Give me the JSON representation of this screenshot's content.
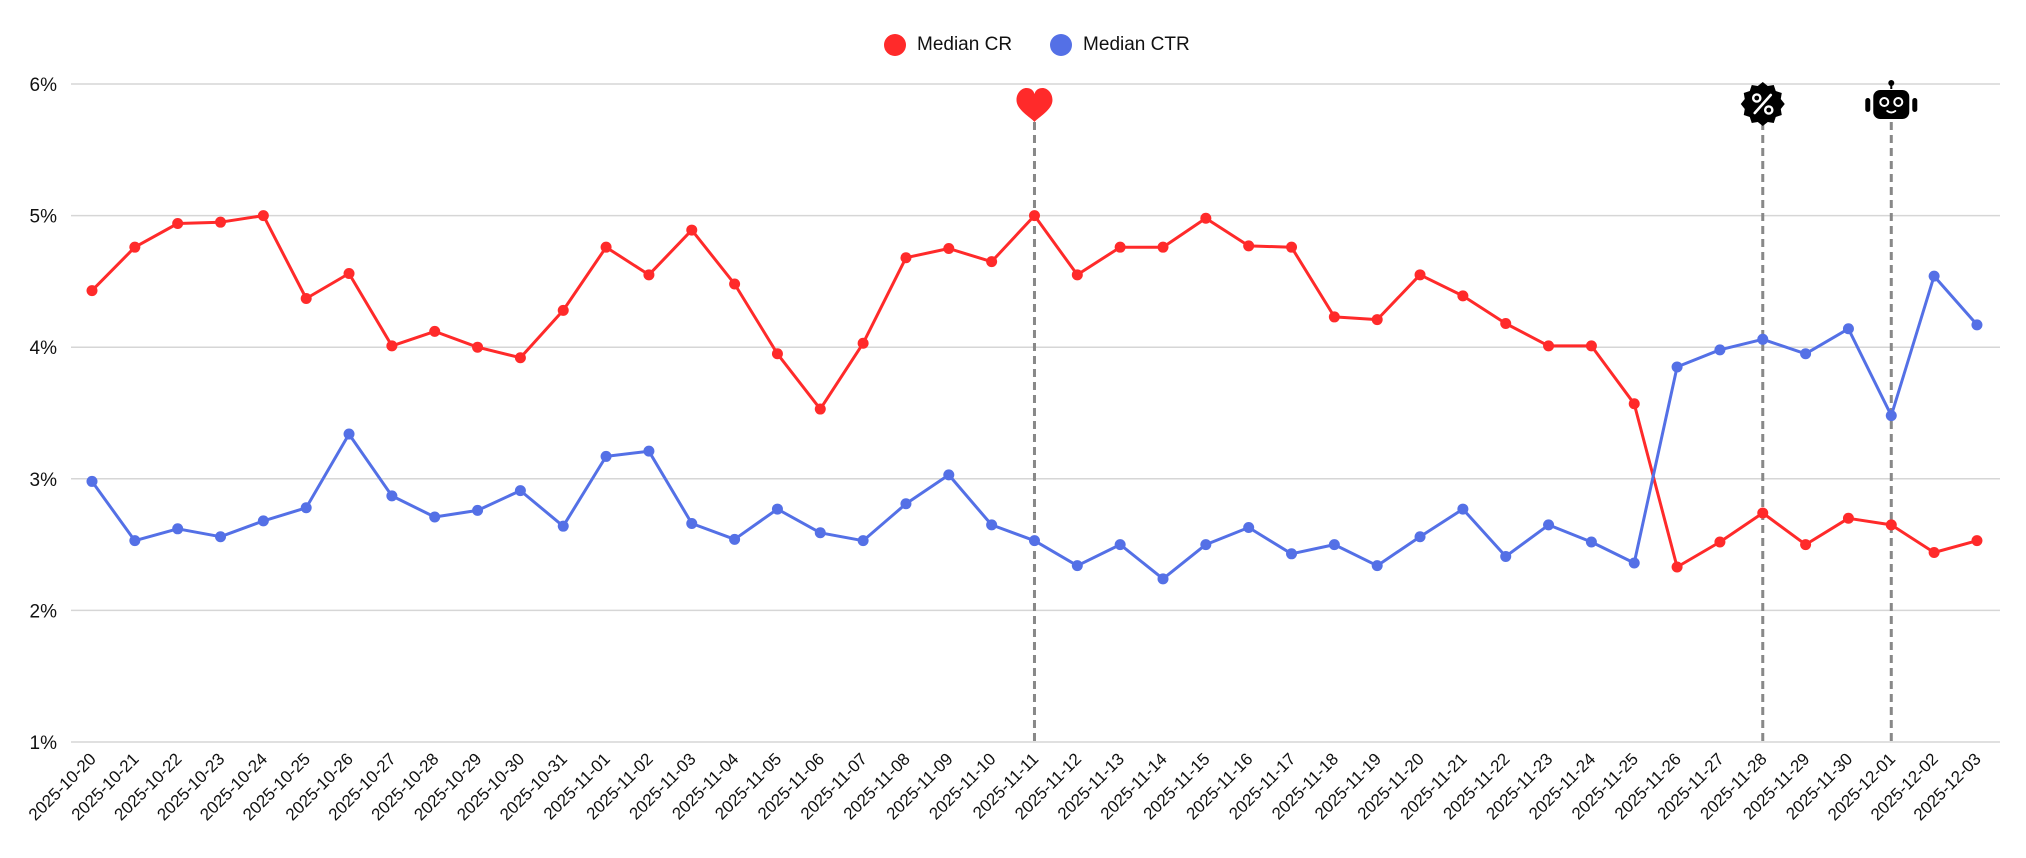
{
  "legend": [
    {
      "label": "Median CR",
      "color": "#FF2A2A"
    },
    {
      "label": "Median CTR",
      "color": "#5470E6"
    }
  ],
  "markers": [
    {
      "date": "2025-11-11",
      "icon": "heart-icon",
      "color": "#FF2A2A"
    },
    {
      "date": "2025-11-28",
      "icon": "discount-badge-icon",
      "color": "#000000"
    },
    {
      "date": "2025-12-01",
      "icon": "robot-icon",
      "color": "#000000"
    }
  ],
  "chart_data": {
    "type": "line",
    "title": "",
    "xlabel": "",
    "ylabel": "",
    "ylim": [
      1,
      6
    ],
    "y_ticks": [
      "1%",
      "2%",
      "3%",
      "4%",
      "5%",
      "6%"
    ],
    "grid": "horizontal",
    "legend_position": "top-center",
    "x": [
      "2025-10-20",
      "2025-10-21",
      "2025-10-22",
      "2025-10-23",
      "2025-10-24",
      "2025-10-25",
      "2025-10-26",
      "2025-10-27",
      "2025-10-28",
      "2025-10-29",
      "2025-10-30",
      "2025-10-31",
      "2025-11-01",
      "2025-11-02",
      "2025-11-03",
      "2025-11-04",
      "2025-11-05",
      "2025-11-06",
      "2025-11-07",
      "2025-11-08",
      "2025-11-09",
      "2025-11-10",
      "2025-11-11",
      "2025-11-12",
      "2025-11-13",
      "2025-11-14",
      "2025-11-15",
      "2025-11-16",
      "2025-11-17",
      "2025-11-18",
      "2025-11-19",
      "2025-11-20",
      "2025-11-21",
      "2025-11-22",
      "2025-11-23",
      "2025-11-24",
      "2025-11-25",
      "2025-11-26",
      "2025-11-27",
      "2025-11-28",
      "2025-11-29",
      "2025-11-30",
      "2025-12-01",
      "2025-12-02",
      "2025-12-03"
    ],
    "series": [
      {
        "name": "Median CR",
        "color": "#FF2A2A",
        "unit": "%",
        "values": [
          4.43,
          4.76,
          4.94,
          4.95,
          5.0,
          4.37,
          4.56,
          4.01,
          4.12,
          4.0,
          3.92,
          4.28,
          4.76,
          4.55,
          4.89,
          4.48,
          3.95,
          3.53,
          4.03,
          4.68,
          4.75,
          4.65,
          5.0,
          4.55,
          4.76,
          4.76,
          4.98,
          4.77,
          4.76,
          4.23,
          4.21,
          4.55,
          4.39,
          4.18,
          4.01,
          4.01,
          3.57,
          2.33,
          2.52,
          2.74,
          2.5,
          2.7,
          2.65,
          2.44,
          2.53
        ]
      },
      {
        "name": "Median CTR",
        "color": "#5470E6",
        "unit": "%",
        "values": [
          2.98,
          2.53,
          2.62,
          2.56,
          2.68,
          2.78,
          3.34,
          2.87,
          2.71,
          2.76,
          2.91,
          2.64,
          3.17,
          3.21,
          2.66,
          2.54,
          2.77,
          2.59,
          2.53,
          2.81,
          3.03,
          2.65,
          2.53,
          2.34,
          2.5,
          2.24,
          2.5,
          2.63,
          2.43,
          2.5,
          2.34,
          2.56,
          2.77,
          2.41,
          2.65,
          2.52,
          2.36,
          3.85,
          3.98,
          4.06,
          3.95,
          4.14,
          3.48,
          4.54,
          4.17
        ]
      }
    ],
    "annotations": [
      {
        "x": "2025-11-11",
        "type": "vertical-dashed-line",
        "icon": "heart"
      },
      {
        "x": "2025-11-28",
        "type": "vertical-dashed-line",
        "icon": "discount-badge"
      },
      {
        "x": "2025-12-01",
        "type": "vertical-dashed-line",
        "icon": "robot"
      }
    ]
  }
}
